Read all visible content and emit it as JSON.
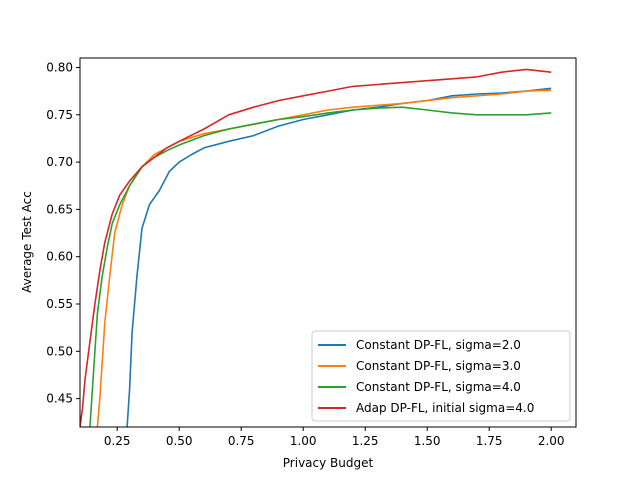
{
  "chart_data": {
    "type": "line",
    "title": "",
    "xlabel": "Privacy Budget",
    "ylabel": "Average Test Acc",
    "xlim": [
      0.1,
      2.1
    ],
    "ylim": [
      0.42,
      0.81
    ],
    "xticks": [
      0.25,
      0.5,
      0.75,
      1.0,
      1.25,
      1.5,
      1.75,
      2.0
    ],
    "xtick_labels": [
      "0.25",
      "0.50",
      "0.75",
      "1.00",
      "1.25",
      "1.50",
      "1.75",
      "2.00"
    ],
    "yticks": [
      0.45,
      0.5,
      0.55,
      0.6,
      0.65,
      0.7,
      0.75,
      0.8
    ],
    "ytick_labels": [
      "0.45",
      "0.50",
      "0.55",
      "0.60",
      "0.65",
      "0.70",
      "0.75",
      "0.80"
    ],
    "grid": false,
    "legend_position": "lower-right",
    "series": [
      {
        "name": "Constant DP-FL, sigma=2.0",
        "color": "#1f77b4",
        "x": [
          0.29,
          0.3,
          0.31,
          0.33,
          0.35,
          0.38,
          0.42,
          0.46,
          0.5,
          0.55,
          0.6,
          0.7,
          0.8,
          0.9,
          1.0,
          1.1,
          1.2,
          1.3,
          1.4,
          1.5,
          1.6,
          1.7,
          1.8,
          1.9,
          2.0
        ],
        "y": [
          0.42,
          0.46,
          0.52,
          0.58,
          0.63,
          0.655,
          0.67,
          0.69,
          0.7,
          0.708,
          0.715,
          0.722,
          0.728,
          0.738,
          0.745,
          0.75,
          0.755,
          0.758,
          0.762,
          0.765,
          0.77,
          0.772,
          0.773,
          0.775,
          0.778
        ]
      },
      {
        "name": "Constant DP-FL, sigma=3.0",
        "color": "#ff7f0e",
        "x": [
          0.17,
          0.18,
          0.19,
          0.2,
          0.22,
          0.24,
          0.27,
          0.3,
          0.35,
          0.4,
          0.45,
          0.5,
          0.6,
          0.7,
          0.8,
          0.9,
          1.0,
          1.1,
          1.2,
          1.3,
          1.4,
          1.5,
          1.6,
          1.7,
          1.8,
          1.9,
          2.0
        ],
        "y": [
          0.42,
          0.45,
          0.49,
          0.53,
          0.58,
          0.625,
          0.655,
          0.675,
          0.695,
          0.708,
          0.715,
          0.722,
          0.73,
          0.735,
          0.74,
          0.745,
          0.75,
          0.755,
          0.758,
          0.76,
          0.762,
          0.765,
          0.768,
          0.77,
          0.772,
          0.775,
          0.776
        ]
      },
      {
        "name": "Constant DP-FL, sigma=4.0",
        "color": "#2ca02c",
        "x": [
          0.14,
          0.15,
          0.16,
          0.17,
          0.19,
          0.21,
          0.23,
          0.26,
          0.3,
          0.35,
          0.4,
          0.45,
          0.5,
          0.6,
          0.7,
          0.8,
          0.9,
          1.0,
          1.1,
          1.2,
          1.3,
          1.4,
          1.5,
          1.6,
          1.7,
          1.8,
          1.9,
          2.0
        ],
        "y": [
          0.42,
          0.46,
          0.5,
          0.54,
          0.58,
          0.61,
          0.635,
          0.655,
          0.675,
          0.695,
          0.705,
          0.712,
          0.718,
          0.728,
          0.735,
          0.74,
          0.745,
          0.748,
          0.752,
          0.755,
          0.757,
          0.758,
          0.755,
          0.752,
          0.75,
          0.75,
          0.75,
          0.752
        ]
      },
      {
        "name": "Adap DP-FL, initial sigma=4.0",
        "color": "#d62728",
        "x": [
          0.1,
          0.11,
          0.12,
          0.14,
          0.16,
          0.18,
          0.2,
          0.23,
          0.26,
          0.3,
          0.35,
          0.4,
          0.45,
          0.5,
          0.6,
          0.7,
          0.8,
          0.9,
          1.0,
          1.1,
          1.2,
          1.3,
          1.4,
          1.5,
          1.6,
          1.7,
          1.8,
          1.9,
          2.0
        ],
        "y": [
          0.42,
          0.44,
          0.47,
          0.51,
          0.55,
          0.585,
          0.615,
          0.645,
          0.665,
          0.68,
          0.695,
          0.705,
          0.715,
          0.722,
          0.735,
          0.75,
          0.758,
          0.765,
          0.77,
          0.775,
          0.78,
          0.782,
          0.784,
          0.786,
          0.788,
          0.79,
          0.795,
          0.798,
          0.795
        ]
      }
    ]
  }
}
